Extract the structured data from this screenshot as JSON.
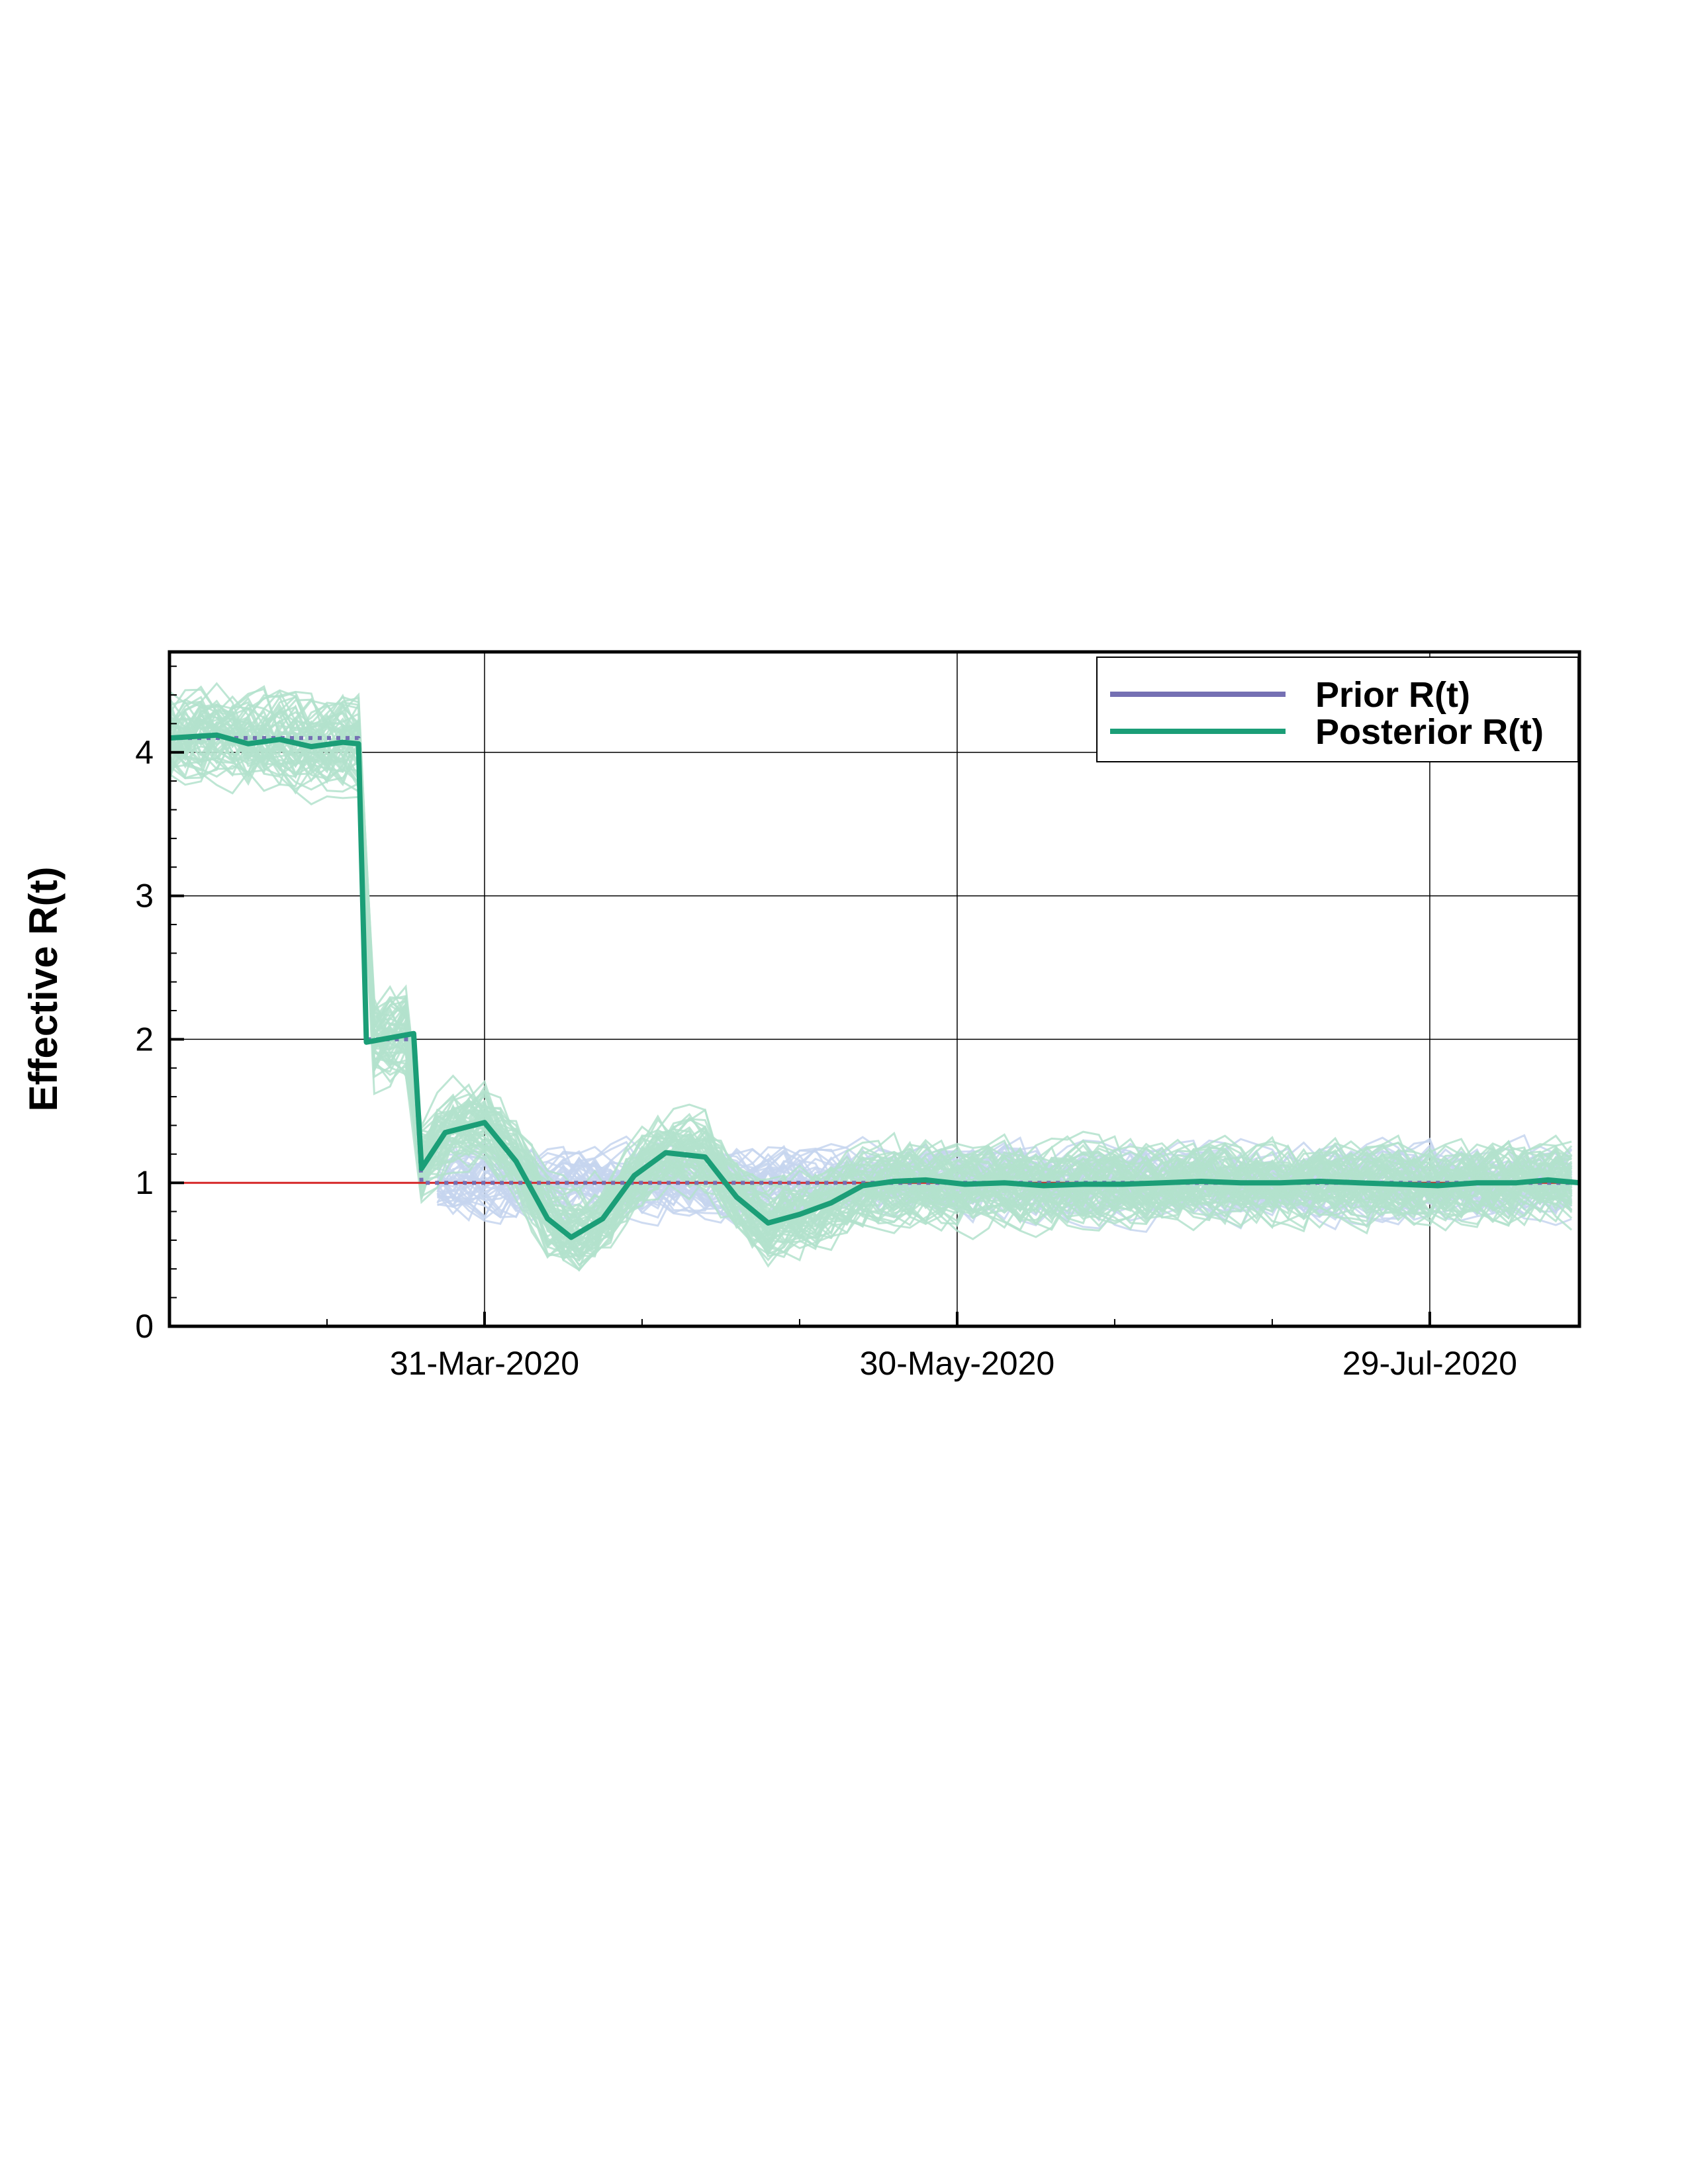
{
  "chart_data": {
    "type": "line",
    "title": "",
    "xlabel": "",
    "ylabel": "Effective R(t)",
    "ylim": [
      0,
      4.7
    ],
    "xlim": [
      "2020-02-20",
      "2020-08-17"
    ],
    "yticks": [
      0,
      1,
      2,
      3,
      4
    ],
    "xticks": [
      {
        "date": "2020-03-31",
        "label": "31-Mar-2020"
      },
      {
        "date": "2020-05-30",
        "label": "30-May-2020"
      },
      {
        "date": "2020-07-29",
        "label": "29-Jul-2020"
      }
    ],
    "grid": true,
    "legend_position": "top-right",
    "reference_line": {
      "y": 1,
      "color": "#d62728"
    },
    "series": [
      {
        "name": "Prior R(t)",
        "color": "#7570b3",
        "sample_color": "#c6d5ef",
        "x": [
          "2020-02-20",
          "2020-03-15",
          "2020-03-16",
          "2020-03-22",
          "2020-03-23",
          "2020-08-17"
        ],
        "y": [
          4.1,
          4.1,
          2.0,
          2.0,
          1.0,
          1.0
        ]
      },
      {
        "name": "Posterior R(t)",
        "color": "#1b9e77",
        "sample_color": "#b3e2cd",
        "x": [
          "2020-02-20",
          "2020-02-26",
          "2020-03-01",
          "2020-03-05",
          "2020-03-09",
          "2020-03-13",
          "2020-03-15",
          "2020-03-16",
          "2020-03-19",
          "2020-03-22",
          "2020-03-23",
          "2020-03-26",
          "2020-03-31",
          "2020-04-04",
          "2020-04-08",
          "2020-04-11",
          "2020-04-15",
          "2020-04-19",
          "2020-04-23",
          "2020-04-28",
          "2020-05-02",
          "2020-05-06",
          "2020-05-10",
          "2020-05-14",
          "2020-05-18",
          "2020-05-22",
          "2020-05-26",
          "2020-05-31",
          "2020-06-05",
          "2020-06-10",
          "2020-06-15",
          "2020-06-20",
          "2020-06-25",
          "2020-06-30",
          "2020-07-05",
          "2020-07-10",
          "2020-07-15",
          "2020-07-20",
          "2020-07-25",
          "2020-07-30",
          "2020-08-04",
          "2020-08-09",
          "2020-08-13",
          "2020-08-17"
        ],
        "y": [
          4.1,
          4.12,
          4.06,
          4.09,
          4.04,
          4.07,
          4.06,
          1.98,
          2.01,
          2.04,
          1.1,
          1.35,
          1.42,
          1.15,
          0.75,
          0.62,
          0.75,
          1.05,
          1.21,
          1.18,
          0.9,
          0.72,
          0.78,
          0.86,
          0.98,
          1.01,
          1.02,
          0.99,
          1.0,
          0.98,
          0.99,
          0.99,
          1.0,
          1.01,
          1.0,
          1.0,
          1.01,
          1.0,
          0.99,
          0.98,
          1.0,
          1.0,
          1.02,
          1.0
        ]
      }
    ]
  }
}
